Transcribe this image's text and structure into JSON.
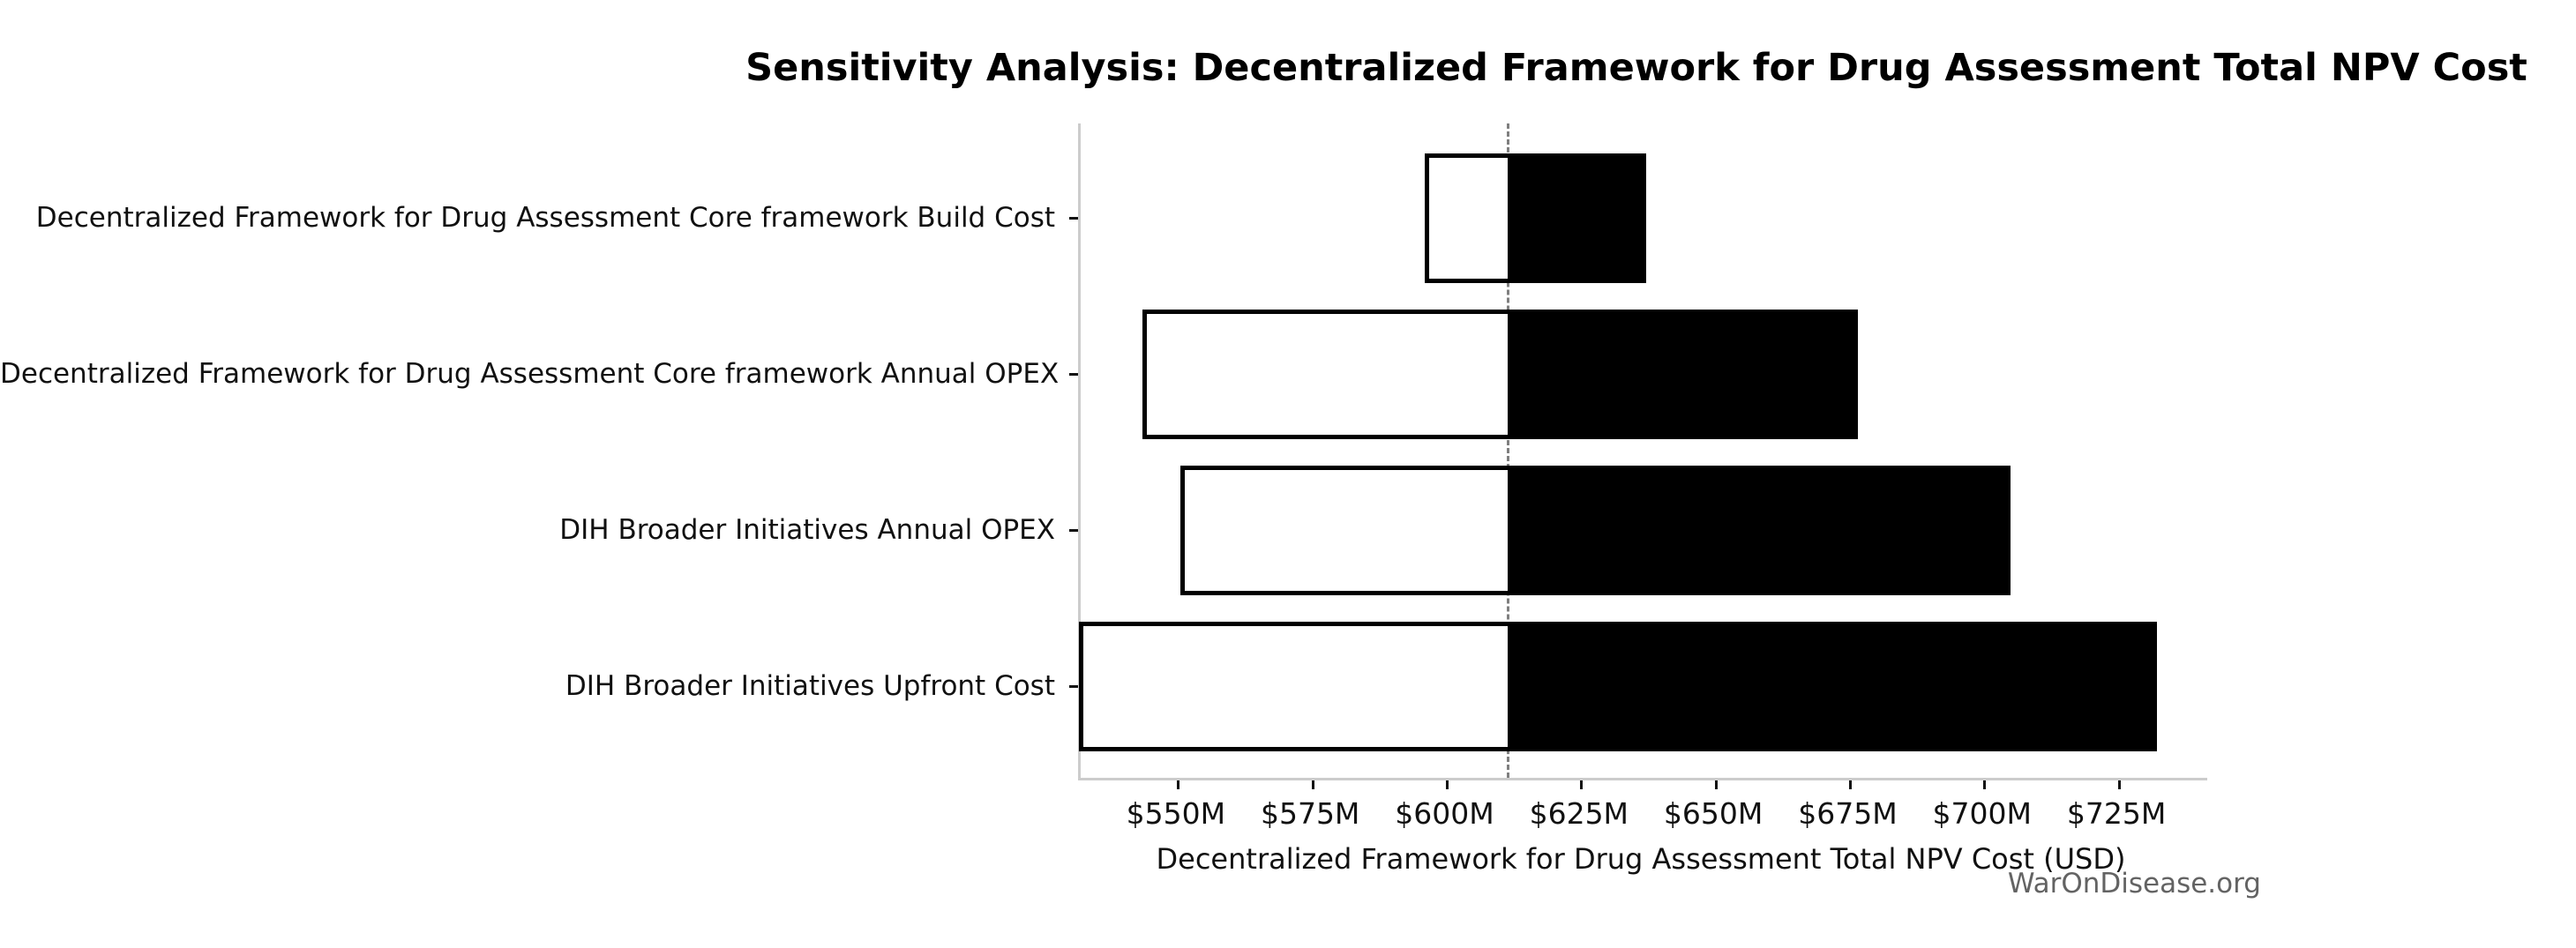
{
  "watermark": "WarOnDisease.org",
  "chart_data": {
    "type": "bar",
    "subtype": "tornado-sensitivity",
    "title": "Sensitivity Analysis: Decentralized Framework for Drug Assessment Total NPV Cost",
    "xlabel": "Decentralized Framework for Drug Assessment Total NPV Cost (USD)",
    "ylabel": "",
    "categories": [
      "Decentralized Framework for Drug Assessment Core framework Build Cost",
      "Decentralized Framework for Drug Assessment Core framework Annual OPEX",
      "DIH Broader Initiatives Annual OPEX",
      "DIH Broader Initiatives Upfront Cost"
    ],
    "bars": [
      {
        "category": "Decentralized Framework for Drug Assessment Core framework Build Cost",
        "low": 596.3,
        "high": 636.6
      },
      {
        "category": "Decentralized Framework for Drug Assessment Core framework Annual OPEX",
        "low": 543.7,
        "high": 675.9
      },
      {
        "category": "DIH Broader Initiatives Annual OPEX",
        "low": 550.8,
        "high": 704.3
      },
      {
        "category": "DIH Broader Initiatives Upfront Cost",
        "low": 531.9,
        "high": 731.5
      }
    ],
    "baseline": 611.3,
    "xlim": [
      531.8,
      741.4
    ],
    "xticks": [
      {
        "value": 550,
        "label": "$550M"
      },
      {
        "value": 575,
        "label": "$575M"
      },
      {
        "value": 600,
        "label": "$600M"
      },
      {
        "value": 625,
        "label": "$625M"
      },
      {
        "value": 650,
        "label": "$650M"
      },
      {
        "value": 675,
        "label": "$675M"
      },
      {
        "value": 700,
        "label": "$700M"
      },
      {
        "value": 725,
        "label": "$725M"
      }
    ],
    "grid": false,
    "legend": false,
    "colors": {
      "low_fill": "#ffffff",
      "high_fill": "#000000",
      "bar_edge": "#000000",
      "baseline_line": "#7f7f7f",
      "spine": "#cccccc",
      "watermark": "#565656"
    }
  }
}
